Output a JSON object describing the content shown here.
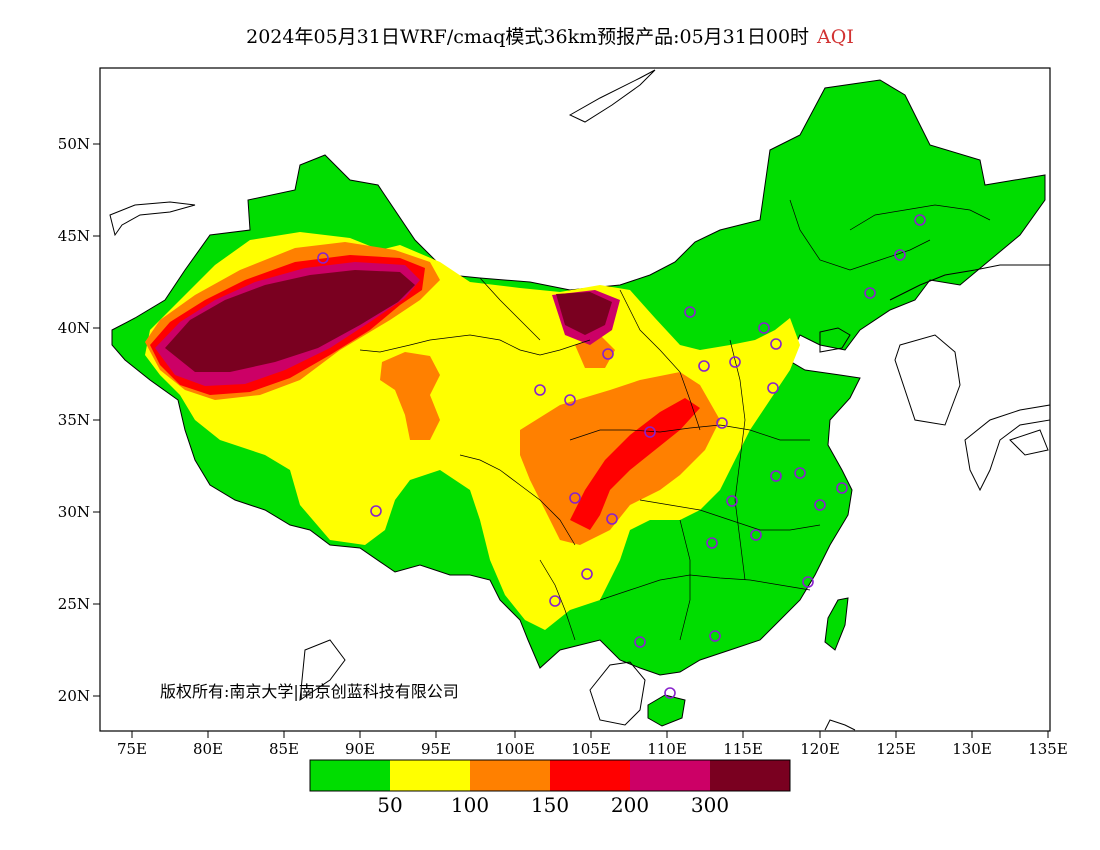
{
  "title": {
    "main": "2024年05月31日WRF/cmaq模式36km预报产品:05月31日00时",
    "variable": "AQI"
  },
  "map": {
    "lat_labels": [
      "50N",
      "45N",
      "40N",
      "35N",
      "30N",
      "25N",
      "20N"
    ],
    "lon_labels": [
      "75E",
      "80E",
      "85E",
      "90E",
      "95E",
      "100E",
      "105E",
      "110E",
      "115E",
      "120E",
      "125E",
      "130E",
      "135E"
    ],
    "copyright": "版权所有:南京大学|南京创蓝科技有限公司"
  },
  "legend": {
    "colors": [
      "#00dd00",
      "#ffff00",
      "#ff8000",
      "#ff0000",
      "#cc0066",
      "#7a0020"
    ],
    "labels": [
      "50",
      "100",
      "150",
      "200",
      "300"
    ]
  },
  "colors": {
    "good": "#00dd00",
    "moderate": "#ffff00",
    "usg": "#ff8000",
    "unhealthy": "#ff0000",
    "very_unhealthy": "#cc0066",
    "hazardous": "#7a0020",
    "station_marker": "#8822cc"
  }
}
